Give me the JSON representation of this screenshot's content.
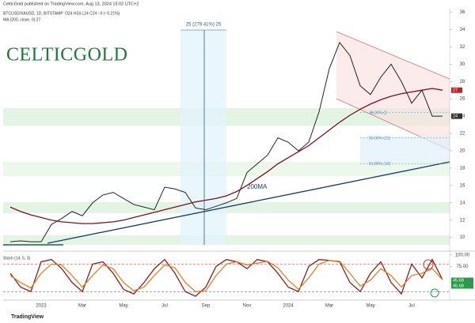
{
  "header": "CelticGold published on TradingView.com, Aug 13, 2024 15:02 UTC+2",
  "logo": "CELTICGOLD",
  "footer": "TradingView",
  "chart_data": [
    {
      "type": "line",
      "info": "O24 H24 L24 C24 −0 (−0.21%)",
      "ma_legend": "MA (200, close, 0) 27",
      "measure_label": "25 (279.41%) 25",
      "categories": [
        null,
        null,
        null,
        "2023",
        null,
        null,
        null,
        "Mar",
        null,
        null,
        null,
        "May",
        null,
        null,
        null,
        "Jul",
        null,
        null,
        null,
        "Sep",
        null,
        null,
        null,
        "Nov",
        null,
        null,
        null,
        "2024",
        null,
        null,
        null,
        "Mar",
        null,
        null,
        null,
        "May",
        null,
        null,
        null,
        "Jul",
        null,
        null,
        null
      ],
      "series": [
        {
          "name": "BTCUSD/XAUSD, 1D, BITSTAMP",
          "color": "#222222",
          "values": [
            9.5,
            9.6,
            9.5,
            9.5,
            11.5,
            12.2,
            13.0,
            12.5,
            14.0,
            14.9,
            15.2,
            14.5,
            13.8,
            13.5,
            13.2,
            15.8,
            15.6,
            15.2,
            13.4,
            13.2,
            13.6,
            14.0,
            14.5,
            17.5,
            18.5,
            19.5,
            21.5,
            21.0,
            20.0,
            21.0,
            24.5,
            29.5,
            32.5,
            31.0,
            27.5,
            26.5,
            28.5,
            30.0,
            28.0,
            25.5,
            27.0,
            24.0,
            24
          ]
        },
        {
          "name": "200MA",
          "color": "#7a1020",
          "values": [
            13.5,
            13.0,
            12.6,
            12.3,
            12.0,
            11.8,
            11.7,
            11.6,
            11.6,
            11.7,
            11.8,
            12.0,
            12.3,
            12.6,
            12.9,
            13.2,
            13.5,
            13.8,
            14.1,
            14.3,
            14.5,
            14.8,
            15.3,
            16.0,
            16.8,
            17.6,
            18.5,
            19.2,
            19.9,
            20.6,
            21.5,
            22.4,
            23.3,
            24.1,
            24.8,
            25.4,
            25.9,
            26.3,
            26.6,
            26.8,
            27.0,
            27.2,
            27
          ]
        }
      ],
      "fib_levels": [
        {
          "value": 24.4,
          "label": "38.20% (2"
        },
        {
          "value": 21.5,
          "label": "50.00% (21)"
        },
        {
          "value": 18.5,
          "label": "61.80% (19)"
        }
      ],
      "ylim": [
        8.6,
        36.5
      ],
      "yticks": [
        36,
        34,
        32,
        30,
        28,
        26,
        24,
        22,
        20,
        18,
        16,
        14,
        12,
        10
      ]
    },
    {
      "type": "line",
      "title": "Stoch (14, 5, 3)",
      "series": [
        {
          "name": "%K",
          "color": "#8b1e1e",
          "values": [
            60,
            30,
            20,
            85,
            90,
            70,
            40,
            20,
            80,
            85,
            60,
            25,
            15,
            40,
            70,
            90,
            60,
            20,
            10,
            30,
            75,
            90,
            85,
            70,
            90,
            85,
            60,
            30,
            20,
            75,
            90,
            88,
            85,
            40,
            20,
            60,
            85,
            40,
            15,
            80,
            50,
            90,
            45.68
          ]
        },
        {
          "name": "%D",
          "color": "#d9822b",
          "values": [
            55,
            40,
            28,
            60,
            80,
            78,
            55,
            30,
            55,
            78,
            70,
            40,
            22,
            30,
            55,
            78,
            72,
            40,
            20,
            22,
            55,
            80,
            85,
            78,
            82,
            86,
            72,
            45,
            25,
            50,
            80,
            88,
            86,
            60,
            32,
            45,
            70,
            55,
            30,
            55,
            60,
            70,
            45.68
          ]
        }
      ],
      "levels": [
        80,
        20
      ],
      "ylim": [
        5,
        103
      ],
      "yticks": [
        {
          "value": 100,
          "label": "100.00"
        },
        {
          "value": 75,
          "label": "75.00"
        }
      ]
    }
  ]
}
